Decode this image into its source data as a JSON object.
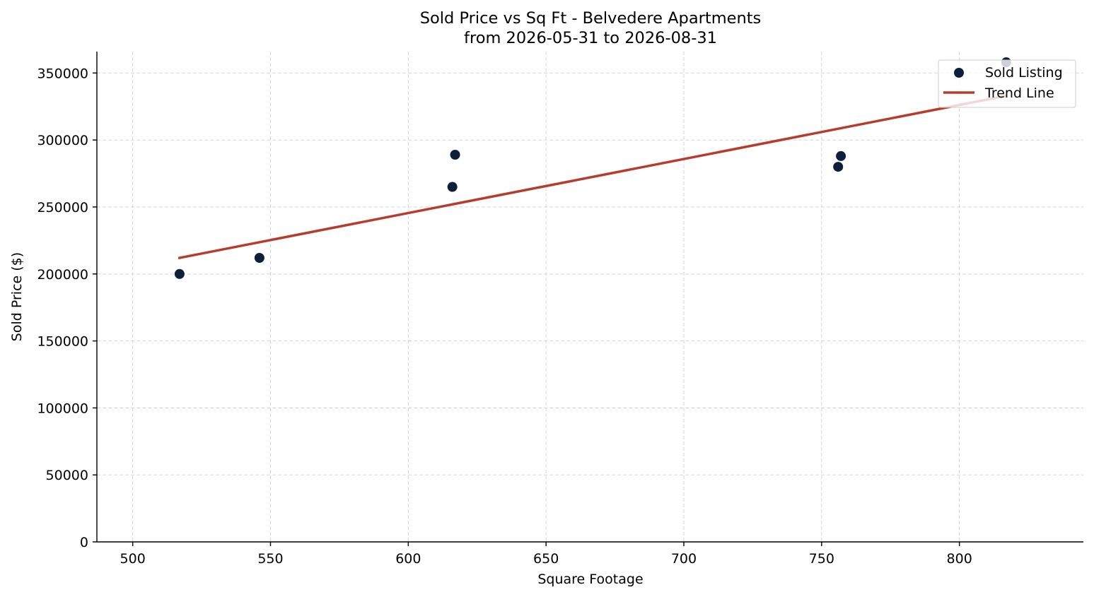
{
  "chart_data": {
    "type": "scatter",
    "title": "Sold Price vs Sq Ft - Belvedere Apartments",
    "subtitle": "from 2026-05-31 to 2026-08-31",
    "xlabel": "Square Footage",
    "ylabel": "Sold Price ($)",
    "xlim": [
      487,
      845
    ],
    "ylim": [
      0,
      366000
    ],
    "xticks": [
      500,
      550,
      600,
      650,
      700,
      750,
      800
    ],
    "yticks": [
      0,
      50000,
      100000,
      150000,
      200000,
      250000,
      300000,
      350000
    ],
    "grid": true,
    "legend_position": "top-right",
    "series": [
      {
        "name": "Sold Listing",
        "kind": "scatter",
        "color": "#0d1f3a",
        "points": [
          {
            "x": 517,
            "y": 200000
          },
          {
            "x": 546,
            "y": 212000
          },
          {
            "x": 616,
            "y": 265000
          },
          {
            "x": 617,
            "y": 289000
          },
          {
            "x": 756,
            "y": 280000
          },
          {
            "x": 757,
            "y": 288000
          },
          {
            "x": 817,
            "y": 358000
          }
        ]
      },
      {
        "name": "Trend Line",
        "kind": "line",
        "color": "#b63c2e",
        "points": [
          {
            "x": 517,
            "y": 212000
          },
          {
            "x": 817,
            "y": 333000
          }
        ]
      }
    ]
  }
}
